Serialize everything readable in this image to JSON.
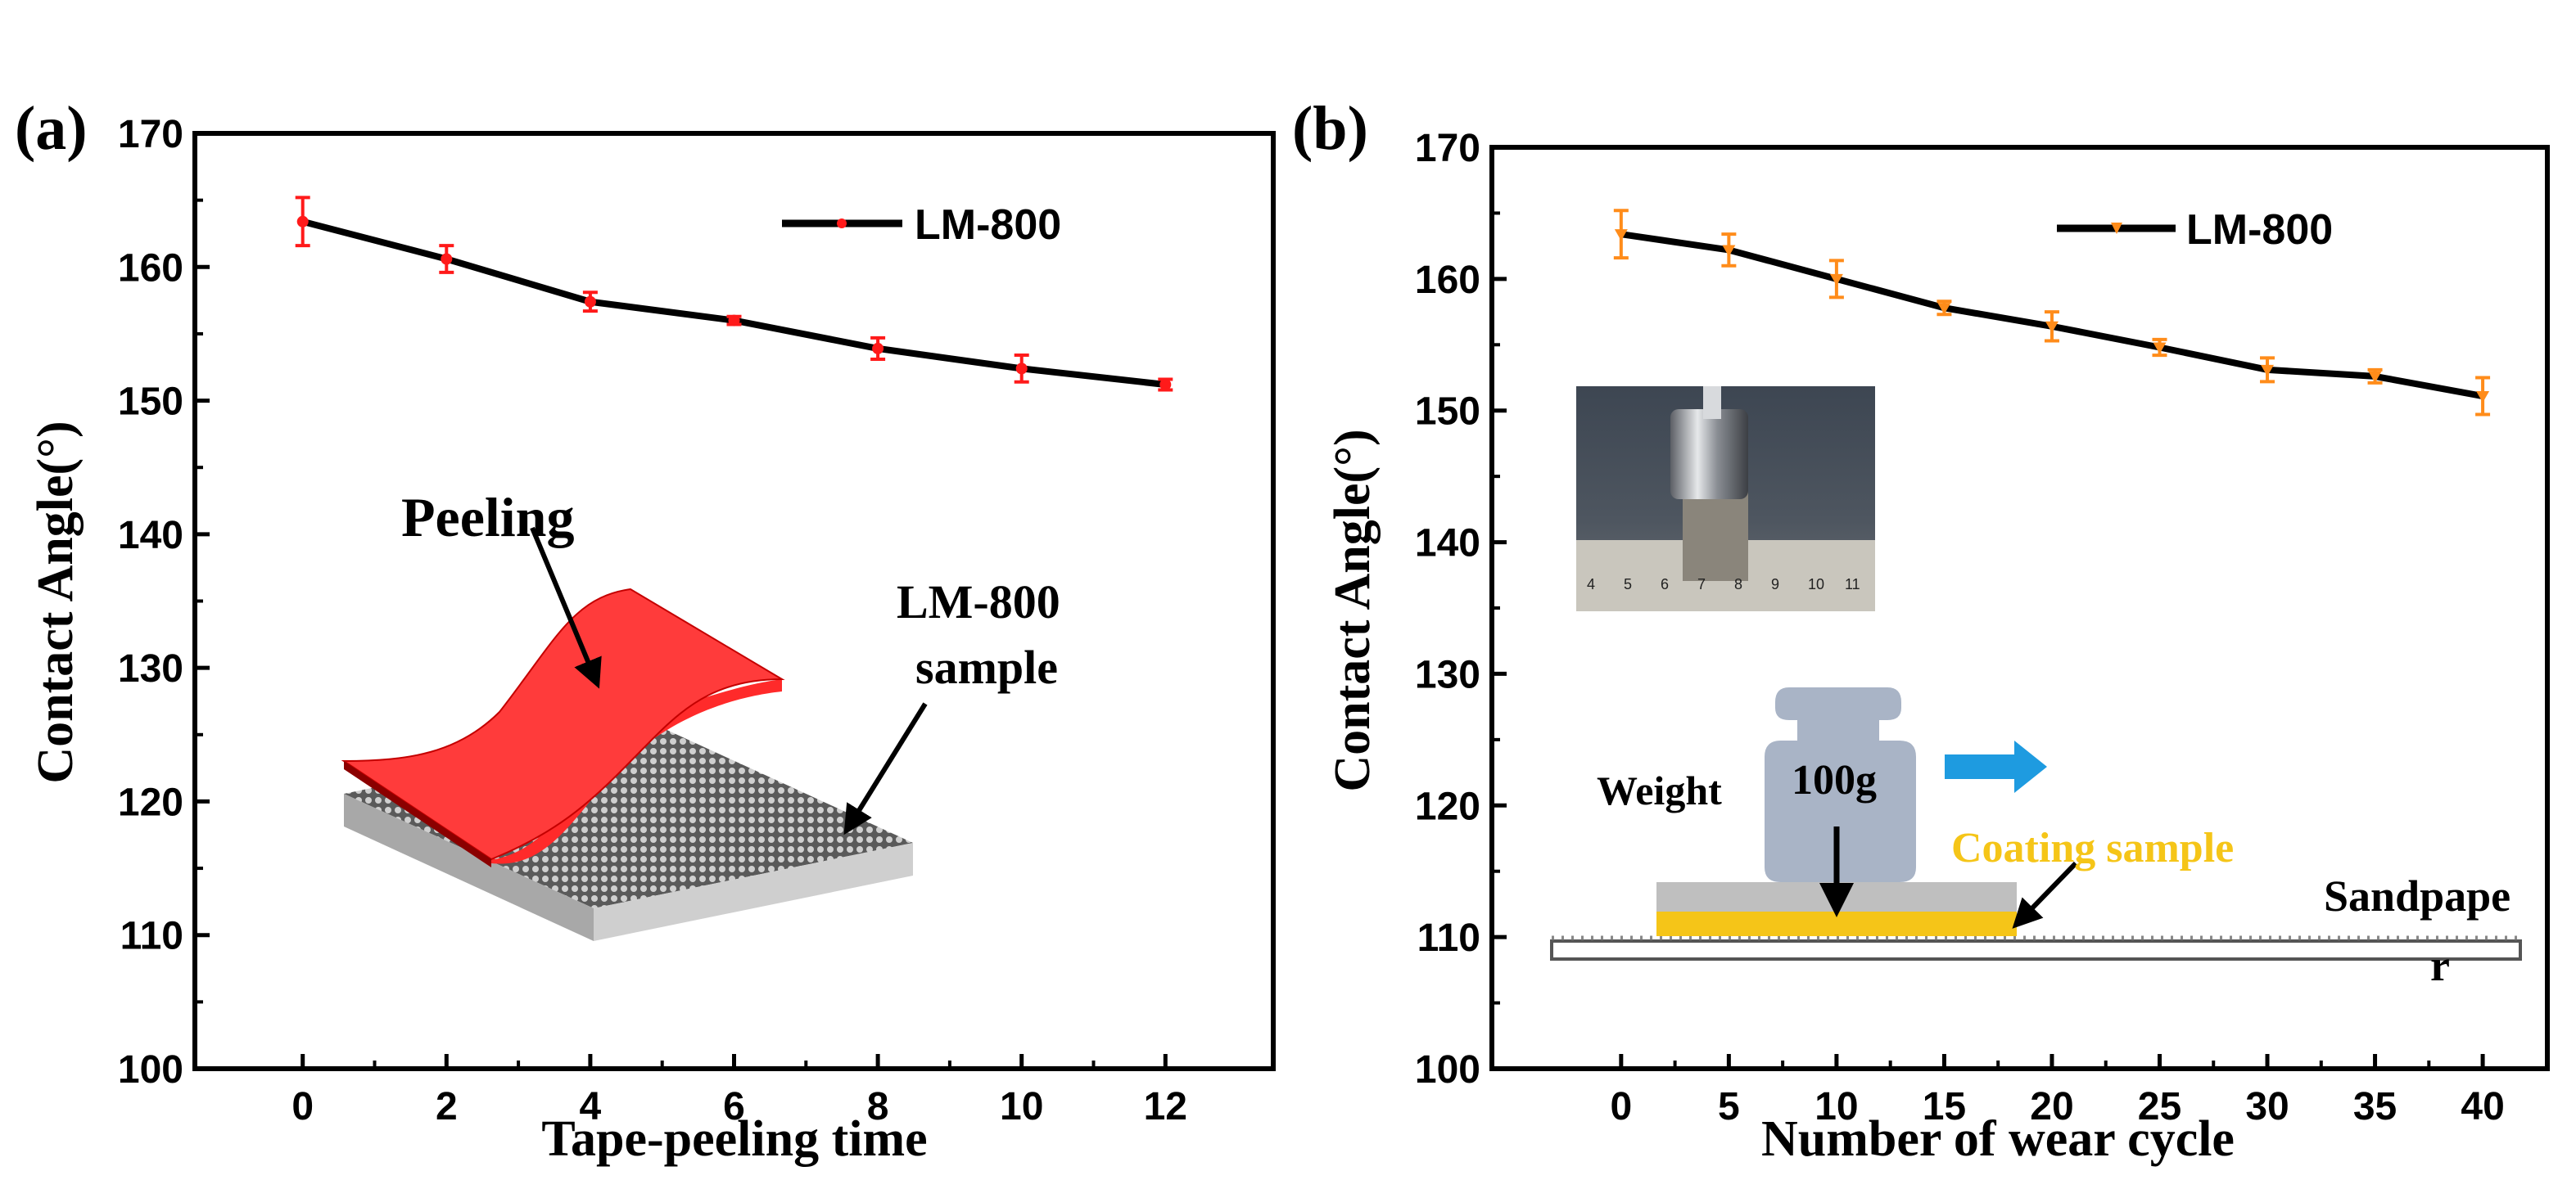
{
  "colors": {
    "line": "#000000",
    "markerA": "#ff1a1a",
    "markerB": "#ff8c1a",
    "tapeRed": "#ff2a2a",
    "coatingYellow": "#f5c518",
    "arrowBlue": "#1e9be0",
    "weightGray": "#a9b4c6"
  },
  "chart_data": [
    {
      "panel_label": "(a)",
      "type": "line",
      "xlabel": "Tape-peeling time",
      "ylabel": "Contact Angle(°)",
      "ylim": [
        100,
        170
      ],
      "xlim": [
        -1.5,
        13.5
      ],
      "x_ticks": [
        "0",
        "2",
        "4",
        "6",
        "8",
        "10",
        "12"
      ],
      "y_ticks": [
        "100",
        "110",
        "120",
        "130",
        "140",
        "150",
        "160",
        "170"
      ],
      "legend": "LM-800",
      "legend_position": "top-right",
      "x": [
        0,
        2,
        4,
        6,
        8,
        10,
        12
      ],
      "y": [
        163.4,
        160.6,
        157.4,
        156.0,
        153.9,
        152.4,
        151.2
      ],
      "err": [
        1.8,
        1.0,
        0.7,
        0.3,
        0.8,
        1.0,
        0.4
      ],
      "annotations": {
        "peeling": "Peeling",
        "sample_line1": "LM-800",
        "sample_line2": "sample"
      }
    },
    {
      "panel_label": "(b)",
      "type": "line",
      "xlabel": "Number of wear cycle",
      "ylabel": "Contact Angle(°)",
      "ylim": [
        100,
        170
      ],
      "xlim": [
        -6,
        43
      ],
      "x_ticks": [
        "0",
        "5",
        "10",
        "15",
        "20",
        "25",
        "30",
        "35",
        "40"
      ],
      "y_ticks": [
        "100",
        "110",
        "120",
        "130",
        "140",
        "150",
        "160",
        "170"
      ],
      "legend": "LM-800",
      "legend_position": "top-right",
      "x": [
        0,
        5,
        10,
        15,
        20,
        25,
        30,
        35,
        40
      ],
      "y": [
        163.4,
        162.2,
        160.0,
        157.8,
        156.4,
        154.8,
        153.1,
        152.6,
        151.1
      ],
      "err": [
        1.8,
        1.2,
        1.4,
        0.5,
        1.1,
        0.6,
        0.9,
        0.5,
        1.4
      ],
      "annotations": {
        "weight_label": "Weight",
        "weight_mass": "100g",
        "coating": "Coating  sample",
        "sandpaper_line1": "Sandpape",
        "sandpaper_line2": "r",
        "ruler_numbers": [
          "4",
          "5",
          "6",
          "7",
          "8",
          "9",
          "10",
          "11"
        ]
      }
    }
  ]
}
